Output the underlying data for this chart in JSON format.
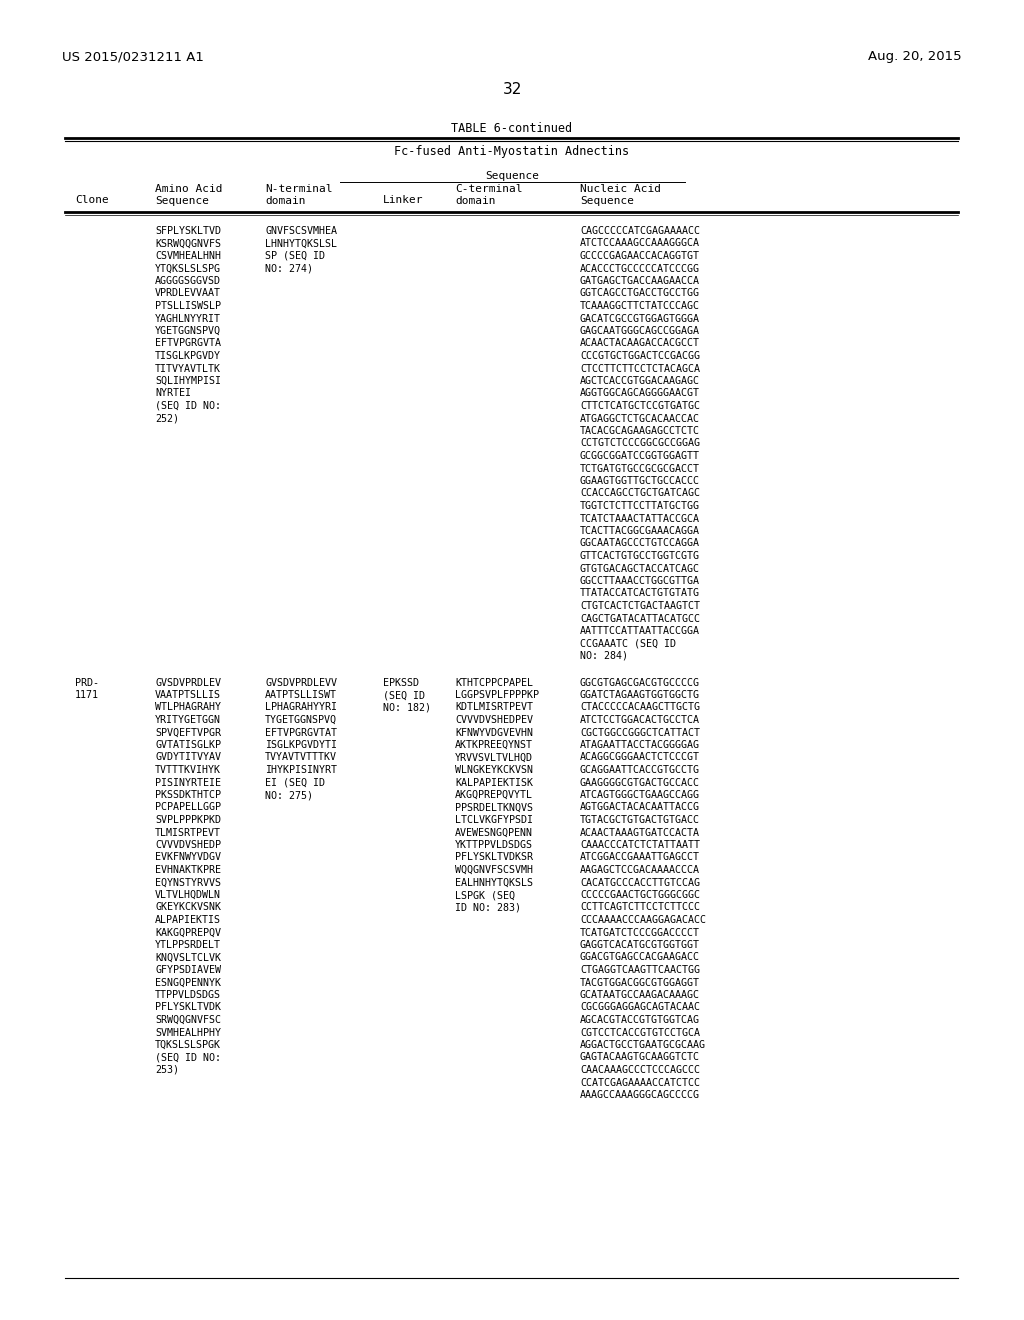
{
  "patent_number": "US 2015/0231211 A1",
  "date": "Aug. 20, 2015",
  "page_number": "32",
  "table_title": "TABLE 6-continued",
  "table_subtitle": "Fc-fused Anti-Myostatin Adnectins",
  "background_color": "#ffffff",
  "text_color": "#000000",
  "col_x": {
    "clone": 75,
    "amino_acid": 155,
    "n_terminal": 265,
    "linker": 383,
    "c_terminal": 455,
    "nucleic_acid": 580
  },
  "row1": {
    "clone": "",
    "amino_acid": [
      "SFPLYSKLTVD",
      "KSRWQQGNVFS",
      "CSVMHEALHNH",
      "YTQKSLSLSPG",
      "AGGGGSGGVSD",
      "VPRDLEVVAAT",
      "PTSLLISWSLP",
      "YAGHLNYYRIT",
      "YGETGGNSPVQ",
      "EFTVPGRGVTA",
      "TISGLKPGVDY",
      "TITVYAVTLTK",
      "SQLIHYMPISI",
      "NYRTEI",
      "(SEQ ID NO:",
      "252)"
    ],
    "n_terminal": [
      "GNVFSCSVMHEA",
      "LHNHYTQKSLSL",
      "SP (SEQ ID",
      "NO: 274)"
    ],
    "linker": [],
    "c_terminal": [],
    "nucleic_acid": [
      "CAGCCCCCATCGAGAAAACC",
      "ATCTCCAAAGCCAAAGGGCA",
      "GCCCCGAGAACCACAGGTGT",
      "ACACCCTGCCCCCATCCCGG",
      "GATGAGCTGACCAAGAACCA",
      "GGTCAGCCTGACCTGCCTGG",
      "TCAAAGGCTTCTATCCCAGC",
      "GACATCGCCGTGGAGTGGGA",
      "GAGCAATGGGCAGCCGGAGA",
      "ACAACTACAAGACCACGCCT",
      "CCCGTGCTGGACTCCGACGG",
      "CTCCTTCTTCCTCTACAGCA",
      "AGCTCACCGTGGACAAGAGC",
      "AGGTGGCAGCAGGGGAACGT",
      "CTTCTCATGCTCCGTGATGC",
      "ATGAGGCTCTGCACAACCAC",
      "TACACGCAGAAGAGCCTCTC",
      "CCTGTCTCCCGGCGCCGGAG",
      "GCGGCGGATCCGGTGGAGTT",
      "TCTGATGTGCCGCGCGACCT",
      "GGAAGTGGTTGCTGCCACCC",
      "CCACCAGCCTGCTGATCAGC",
      "TGGTCTCTTCCTTATGCTGG",
      "TCATCTAAACTATTACCGCA",
      "TCACTTACGGCGAAACAGGA",
      "GGCAATAGCCCTGTCCAGGA",
      "GTTCACTGTGCCTGGTCGTG",
      "GTGTGACAGCTACCATCAGC",
      "GGCCTTAAACCTGGCGTTGA",
      "TTATACCATCACTGTGTATG",
      "CTGTCACTCTGACTAAGTCT",
      "CAGCTGATACATTACATGCC",
      "AATTTCCATTAATTACCGGA",
      "CCGAAATC (SEQ ID",
      "NO: 284)"
    ]
  },
  "row2": {
    "clone": [
      "PRD-",
      "1171"
    ],
    "amino_acid": [
      "GVSDVPRDLEV",
      "VAATPTSLLIS",
      "WTLPHAGRAHY",
      "YRITYGETGGN",
      "SPVQEFTVPGR",
      "GVTATISGLKP",
      "GVDYTITVYAV",
      "TVTTTKVIHYK",
      "PISINYRTEIE",
      "PKSSDKTHTCP",
      "PCPAPELLGGP",
      "SVPLPPPKPKD",
      "TLMISRTPEVT",
      "CVVVDVSHEDP",
      "EVKFNWYVDGV",
      "EVHNAKTKPRE",
      "EQYNSTYRVVS",
      "VLTVLHQDWLN",
      "GKEYKCKVSNK",
      "ALPAPIEKTIS",
      "KAKGQPREPQV",
      "YTLPPSRDELT",
      "KNQVSLTCLVK",
      "GFYPSDIAVEW",
      "ESNGQPENNYK",
      "TTPPVLDSDGS",
      "PFLYSKLTVDK",
      "SRWQQGNVFSC",
      "SVMHEALHPHY",
      "TQKSLSLSPGK",
      "(SEQ ID NO:",
      "253)"
    ],
    "n_terminal": [
      "GVSDVPRDLEVV",
      "AATPTSLLISWT",
      "LPHAGRAHYYRI",
      "TYGETGGNSPVQ",
      "EFTVPGRGVTAT",
      "ISGLKPGVDYTI",
      "TVYAVTVTTTKV",
      "IHYKPISINYRT",
      "EI (SEQ ID",
      "NO: 275)"
    ],
    "linker": [
      "EPKSSD",
      "(SEQ ID",
      "NO: 182)"
    ],
    "c_terminal": [
      "KTHTCPPCPAPEL",
      "LGGPSVPLFPPPKP",
      "KDTLMISRTPEVT",
      "CVVVDVSHEDPEV",
      "KFNWYVDGVEVHN",
      "AKTKPREEQYNST",
      "YRVVSVLTVLHQD",
      "WLNGKEYKCKVSN",
      "KALPAPIEKTISK",
      "AKGQPREPQVYTL",
      "PPSRDELTKNQVS",
      "LTCLVKGFYPSDI",
      "AVEWESNGQPENN",
      "YKTTPPVLDSDGS",
      "PFLYSKLTVDKSR",
      "WQQGNVFSCSVMH",
      "EALHNHYTQKSLS",
      "LSPGK (SEQ",
      "ID NO: 283)"
    ],
    "nucleic_acid": [
      "GGCGTGAGCGACGTGCCCCG",
      "GGATCTAGAAGTGGTGGCTG",
      "CTACCCCCACAAGCTTGCTG",
      "ATCTCCTGGACACTGCCTCA",
      "CGCTGGCCGGGCTCATTACT",
      "ATAGAATTACCTACGGGGAG",
      "ACAGGCGGGAACTCTCCCGT",
      "GCAGGAATTCACCGTGCCTG",
      "GAAGGGGCGTGACTGCCACC",
      "ATCAGTGGGCTGAAGCCAGG",
      "AGTGGACTACACAATTACCG",
      "TGTACGCTGTGACTGTGACC",
      "ACAACTAAAGTGATCCACTA",
      "CAAACCCATCTCTATTAATT",
      "ATCGGACCGAAATTGAGCCT",
      "AAGAGCTCCGACAAAACCCA",
      "CACATGCCCACCTTGTCCAG",
      "CCCCCGAACTGCTGGGCGGC",
      "CCTTCAGTCTTCCTCTTCCC",
      "CCCAAAACCCAAGGAGACACC",
      "TCATGATCTCCCGGACCCCT",
      "GAGGTCACATGCGTGGTGGT",
      "GGACGTGAGCCACGAAGACC",
      "CTGAGGTCAAGTTCAACTGG",
      "TACGTGGACGGCGTGGAGGT",
      "GCATAATGCCAAGACAAAGC",
      "CGCGGGAGGAGCAGTACAAC",
      "AGCACGTACCGTGTGGTCAG",
      "CGTCCTCACCGTGTCCTGCA",
      "AGGACTGCCTGAATGCGCAAG",
      "GAGTACAAGTGCAAGGTCTC",
      "CAACAAAGCCCTCCCAGCCC",
      "CCATCGAGAAAACCATCTCC",
      "AAAGCCAAAGGGCAGCCCCG"
    ]
  }
}
